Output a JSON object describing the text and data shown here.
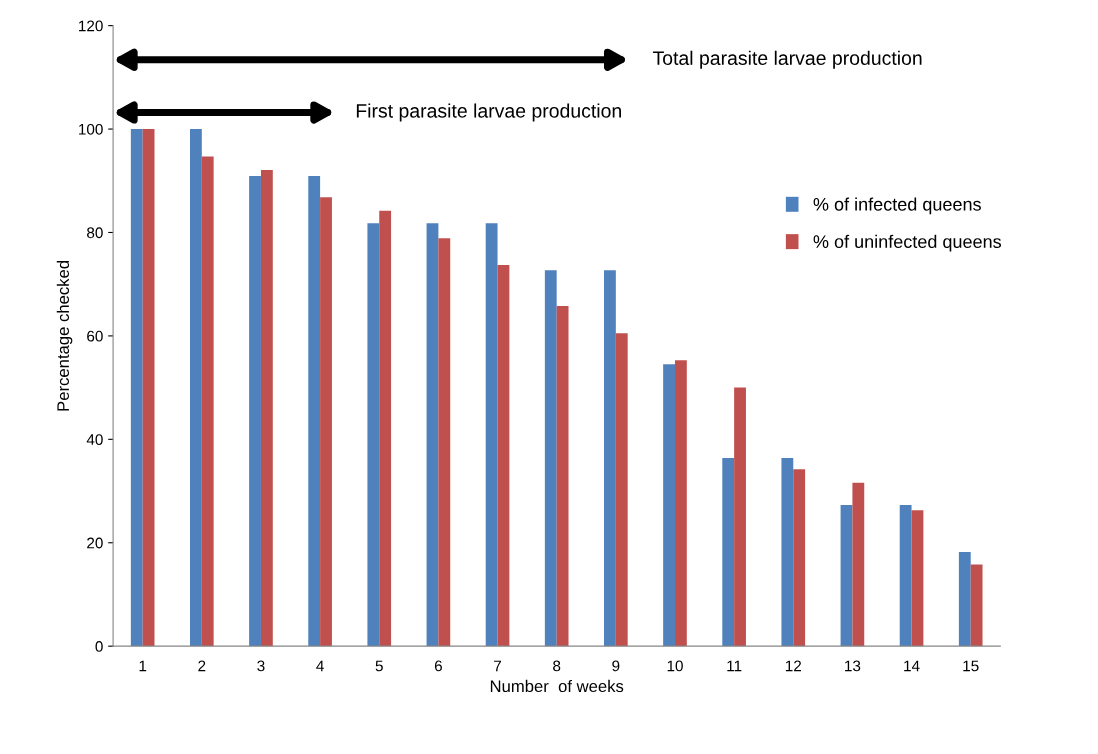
{
  "chart_data": {
    "type": "bar",
    "xlabel": "Number  of weeks",
    "ylabel": "Percentage checked",
    "categories": [
      "1",
      "2",
      "3",
      "4",
      "5",
      "6",
      "7",
      "8",
      "9",
      "10",
      "11",
      "12",
      "13",
      "14",
      "15"
    ],
    "series": [
      {
        "name": "% of infected queens",
        "color": "#4f81bd",
        "values": [
          100,
          100,
          90.9,
          90.9,
          81.8,
          81.8,
          81.8,
          72.7,
          72.7,
          54.5,
          36.4,
          36.4,
          27.3,
          27.3,
          18.2
        ]
      },
      {
        "name": "% of uninfected queens",
        "color": "#c0504d",
        "values": [
          100,
          94.7,
          92.1,
          86.8,
          84.2,
          78.9,
          73.7,
          65.8,
          60.5,
          55.3,
          50,
          34.2,
          31.6,
          26.3,
          15.8
        ]
      }
    ],
    "ylim": [
      0,
      120
    ],
    "yticks": [
      0,
      20,
      40,
      60,
      80,
      100,
      120
    ],
    "grid": false,
    "legend": "right",
    "annotations": [
      "Total parasite larvae production",
      "First parasite larvae production"
    ]
  }
}
